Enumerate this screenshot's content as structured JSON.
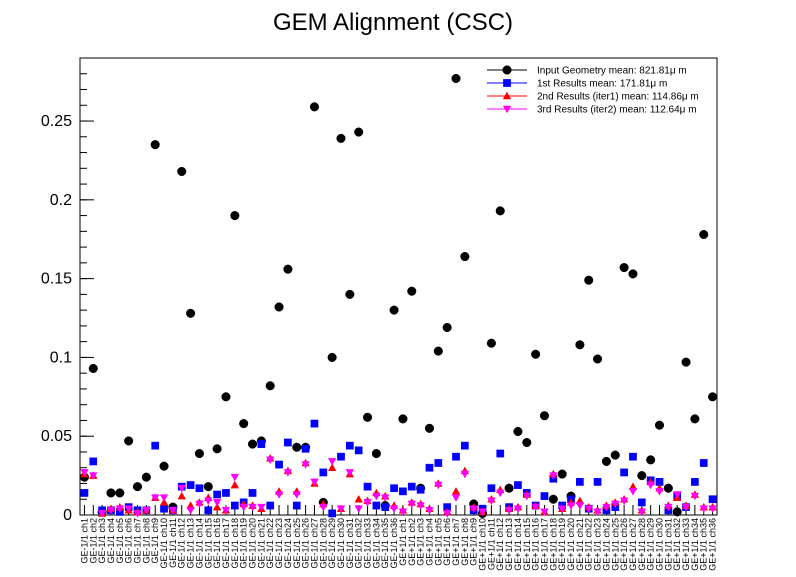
{
  "chart_data": {
    "type": "scatter",
    "title": "GEM Alignment (CSC)",
    "xlabel": "",
    "ylabel": "",
    "ylim": [
      0,
      0.29
    ],
    "yticks": [
      0,
      0.05,
      0.1,
      0.15,
      0.2,
      0.25
    ],
    "ytick_labels": [
      "0",
      "0.05",
      "0.1",
      "0.15",
      "0.2",
      "0.25"
    ],
    "legend_position": "top-right",
    "grid": false,
    "categories": [
      "GE-1/1 ch1",
      "GE-1/1 ch2",
      "GE-1/1 ch3",
      "GE-1/1 ch4",
      "GE-1/1 ch5",
      "GE-1/1 ch6",
      "GE-1/1 ch7",
      "GE-1/1 ch8",
      "GE-1/1 ch9",
      "GE-1/1 ch10",
      "GE-1/1 ch11",
      "GE-1/1 ch12",
      "GE-1/1 ch13",
      "GE-1/1 ch14",
      "GE-1/1 ch15",
      "GE-1/1 ch16",
      "GE-1/1 ch17",
      "GE-1/1 ch18",
      "GE-1/1 ch19",
      "GE-1/1 ch20",
      "GE-1/1 ch21",
      "GE-1/1 ch22",
      "GE-1/1 ch23",
      "GE-1/1 ch24",
      "GE-1/1 ch25",
      "GE-1/1 ch26",
      "GE-1/1 ch27",
      "GE-1/1 ch28",
      "GE-1/1 ch29",
      "GE-1/1 ch30",
      "GE-1/1 ch31",
      "GE-1/1 ch32",
      "GE-1/1 ch33",
      "GE-1/1 ch34",
      "GE-1/1 ch35",
      "GE-1/1 ch36",
      "GE+1/1 ch1",
      "GE+1/1 ch2",
      "GE+1/1 ch3",
      "GE+1/1 ch4",
      "GE+1/1 ch5",
      "GE+1/1 ch6",
      "GE+1/1 ch7",
      "GE+1/1 ch8",
      "GE+1/1 ch9",
      "GE+1/1 ch10",
      "GE+1/1 ch11",
      "GE+1/1 ch12",
      "GE+1/1 ch13",
      "GE+1/1 ch14",
      "GE+1/1 ch15",
      "GE+1/1 ch16",
      "GE+1/1 ch17",
      "GE+1/1 ch18",
      "GE+1/1 ch19",
      "GE+1/1 ch20",
      "GE+1/1 ch21",
      "GE+1/1 ch22",
      "GE+1/1 ch23",
      "GE+1/1 ch24",
      "GE+1/1 ch25",
      "GE+1/1 ch26",
      "GE+1/1 ch27",
      "GE+1/1 ch28",
      "GE+1/1 ch29",
      "GE+1/1 ch30",
      "GE+1/1 ch31",
      "GE+1/1 ch32",
      "GE+1/1 ch33",
      "GE+1/1 ch34",
      "GE+1/1 ch35",
      "GE+1/1 ch36"
    ],
    "series": [
      {
        "name": "Input Geometry  mean: 821.81μ m",
        "marker": "circle",
        "color": "#000000",
        "values": [
          0.024,
          0.093,
          0.002,
          0.014,
          0.014,
          0.047,
          0.018,
          0.024,
          0.235,
          0.031,
          0.005,
          0.218,
          0.128,
          0.039,
          0.018,
          0.042,
          0.075,
          0.19,
          0.058,
          0.045,
          0.047,
          0.082,
          0.132,
          0.156,
          0.043,
          0.043,
          0.259,
          0.008,
          0.1,
          0.239,
          0.14,
          0.243,
          0.062,
          0.039,
          0.006,
          0.13,
          0.061,
          0.142,
          0.017,
          0.055,
          0.104,
          0.119,
          0.277,
          0.164,
          0.007,
          0.001,
          0.109,
          0.193,
          0.017,
          0.053,
          0.046,
          0.102,
          0.063,
          0.01,
          0.026,
          0.012,
          0.108,
          0.149,
          0.099,
          0.034,
          0.038,
          0.157,
          0.153,
          0.025,
          0.035,
          0.057,
          0.017,
          0.002,
          0.097,
          0.061,
          0.178,
          0.075
        ]
      },
      {
        "name": "1st Results mean: 171.81μ m",
        "marker": "square",
        "color": "#0000ff",
        "values": [
          0.014,
          0.034,
          0.003,
          0.003,
          0.002,
          0.005,
          0.003,
          0.003,
          0.044,
          0.004,
          0.003,
          0.018,
          0.019,
          0.017,
          0.003,
          0.013,
          0.014,
          0.006,
          0.008,
          0.014,
          0.045,
          0.006,
          0.032,
          0.046,
          0.006,
          0.042,
          0.058,
          0.027,
          0.001,
          0.037,
          0.044,
          0.041,
          0.018,
          0.006,
          0.005,
          0.017,
          0.015,
          0.018,
          0.016,
          0.03,
          0.033,
          0.005,
          0.037,
          0.044,
          0.003,
          0.004,
          0.017,
          0.039,
          0.005,
          0.019,
          0.014,
          0.006,
          0.012,
          0.023,
          0.006,
          0.01,
          0.021,
          0.004,
          0.021,
          0.003,
          0.005,
          0.027,
          0.037,
          0.008,
          0.022,
          0.021,
          0.003,
          0.012,
          0.005,
          0.021,
          0.033,
          0.01
        ]
      },
      {
        "name": "2nd Results (iter1) mean: 114.86μ m",
        "marker": "triangle-up",
        "color": "#ff0000",
        "values": [
          0.026,
          0.025,
          0.001,
          0.004,
          0.005,
          0.003,
          0.002,
          0.003,
          0.011,
          0.008,
          0.003,
          0.012,
          0.006,
          0.008,
          0.011,
          0.005,
          0.003,
          0.019,
          0.007,
          0.006,
          0.004,
          0.036,
          0.015,
          0.028,
          0.015,
          0.033,
          0.02,
          0.007,
          0.03,
          0.004,
          0.026,
          0.01,
          0.009,
          0.014,
          0.012,
          0.006,
          0.003,
          0.008,
          0.007,
          0.004,
          0.02,
          0.002,
          0.015,
          0.028,
          0.005,
          0.002,
          0.01,
          0.016,
          0.004,
          0.005,
          0.013,
          0.006,
          0.002,
          0.026,
          0.004,
          0.008,
          0.009,
          0.005,
          0.003,
          0.006,
          0.008,
          0.01,
          0.018,
          0.003,
          0.021,
          0.017,
          0.006,
          0.011,
          0.006,
          0.013,
          0.005,
          0.005
        ]
      },
      {
        "name": "3rd Results (iter2) mean: 112.64μ m",
        "marker": "triangle-down",
        "color": "#ff00ff",
        "values": [
          0.027,
          0.025,
          0.001,
          0.003,
          0.004,
          0.004,
          0.001,
          0.003,
          0.011,
          0.011,
          0.003,
          0.017,
          0.003,
          0.007,
          0.009,
          0.008,
          0.003,
          0.024,
          0.005,
          0.005,
          0.005,
          0.035,
          0.013,
          0.027,
          0.013,
          0.032,
          0.021,
          0.005,
          0.034,
          0.004,
          0.027,
          0.004,
          0.008,
          0.012,
          0.011,
          0.004,
          0.002,
          0.007,
          0.006,
          0.003,
          0.019,
          0.001,
          0.011,
          0.026,
          0.004,
          0.002,
          0.009,
          0.014,
          0.003,
          0.004,
          0.012,
          0.005,
          0.002,
          0.025,
          0.004,
          0.006,
          0.006,
          0.004,
          0.002,
          0.005,
          0.007,
          0.009,
          0.015,
          0.002,
          0.019,
          0.015,
          0.005,
          0.013,
          0.005,
          0.012,
          0.004,
          0.004
        ]
      }
    ]
  }
}
